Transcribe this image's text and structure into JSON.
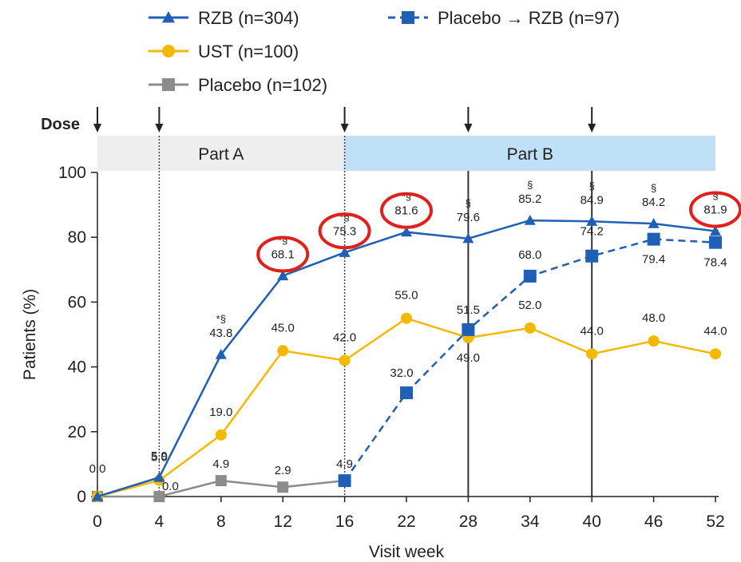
{
  "chart_data": {
    "type": "line",
    "xlabel": "Visit week",
    "ylabel": "Patients (%)",
    "ylim": [
      0,
      100
    ],
    "yticks": [
      0,
      20,
      40,
      60,
      80,
      100
    ],
    "categories": [
      "0",
      "4",
      "8",
      "12",
      "16",
      "22",
      "28",
      "34",
      "40",
      "46",
      "52"
    ],
    "dose_label": "Dose",
    "dose_weeks": [
      "0",
      "4",
      "16",
      "28",
      "40"
    ],
    "parts": [
      {
        "label": "Part A",
        "from": "0",
        "to": "16",
        "color": "#eeeeee"
      },
      {
        "label": "Part B",
        "from": "16",
        "to": "52",
        "color": "#bfe0f6"
      }
    ],
    "series": [
      {
        "name": "RZB (n=304)",
        "color": "#1f5fb5",
        "marker": "triangle",
        "dashed": false,
        "x": [
          "0",
          "4",
          "8",
          "12",
          "16",
          "22",
          "28",
          "34",
          "40",
          "46",
          "52"
        ],
        "values": [
          0,
          5.9,
          43.8,
          68.1,
          75.3,
          81.6,
          79.6,
          85.2,
          84.9,
          84.2,
          81.9
        ],
        "labels": [
          "0.0",
          "5.9",
          "43.8",
          "68.1",
          "75.3",
          "81.6",
          "79.6",
          "85.2",
          "84.9",
          "84.2",
          "81.9"
        ],
        "sig": [
          "",
          "",
          "*§",
          "*§",
          "*§",
          "*§",
          "§",
          "§",
          "§",
          "§",
          "§"
        ]
      },
      {
        "name": "Placebo → RZB (n=97)",
        "color": "#1f5fb5",
        "marker": "square",
        "dashed": true,
        "x": [
          "16",
          "22",
          "28",
          "34",
          "40",
          "46",
          "52"
        ],
        "values": [
          4.9,
          32.0,
          51.5,
          68.0,
          74.2,
          79.4,
          78.4
        ],
        "labels": [
          "",
          "32.0",
          "51.5",
          "68.0",
          "74.2",
          "79.4",
          "78.4"
        ],
        "sig": [
          "",
          "",
          "",
          "",
          "",
          "",
          ""
        ]
      },
      {
        "name": "UST (n=100)",
        "color": "#f3b800",
        "marker": "circle",
        "dashed": false,
        "x": [
          "0",
          "4",
          "8",
          "12",
          "16",
          "22",
          "28",
          "34",
          "40",
          "46",
          "52"
        ],
        "values": [
          0,
          5.0,
          19.0,
          45.0,
          42.0,
          55.0,
          49.0,
          52.0,
          44.0,
          48.0,
          44.0
        ],
        "labels": [
          "",
          "5.0",
          "19.0",
          "45.0",
          "42.0",
          "55.0",
          "49.0",
          "52.0",
          "44.0",
          "48.0",
          "44.0"
        ],
        "sig": [
          "",
          "",
          "",
          "",
          "",
          "",
          "",
          "",
          "",
          "",
          ""
        ]
      },
      {
        "name": "Placebo (n=102)",
        "color": "#8c8c8c",
        "marker": "square",
        "dashed": false,
        "x": [
          "0",
          "4",
          "8",
          "12",
          "16"
        ],
        "values": [
          0,
          0,
          4.9,
          2.9,
          4.9
        ],
        "labels": [
          "",
          "0.0",
          "4.9",
          "2.9",
          "4.9"
        ],
        "sig": [
          "",
          "",
          "",
          "",
          ""
        ]
      }
    ],
    "highlight_circles": [
      "12",
      "16",
      "22",
      "52"
    ],
    "highlight_color": "#e0211b"
  }
}
